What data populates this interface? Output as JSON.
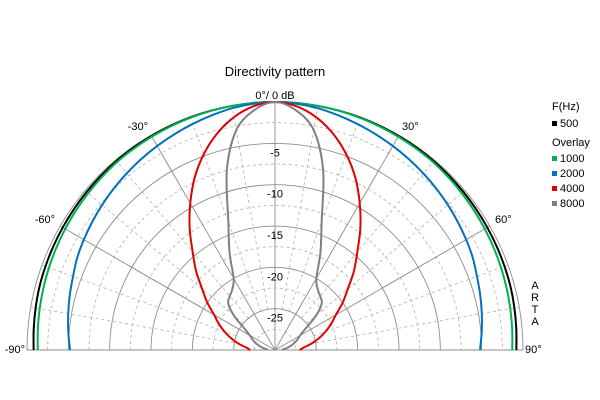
{
  "chart_data": {
    "type": "polar",
    "title": "Directivity pattern",
    "watermark": "ARTA",
    "angle_range_deg": [
      -90,
      90
    ],
    "radial_unit": "dB",
    "radial_range_db": [
      -30,
      0
    ],
    "radial_ticks": [
      {
        "value": 0,
        "label": "0°/ 0 dB"
      },
      {
        "value": -5,
        "label": "-5"
      },
      {
        "value": -10,
        "label": "-10"
      },
      {
        "value": -15,
        "label": "-15"
      },
      {
        "value": -20,
        "label": "-20"
      },
      {
        "value": -25,
        "label": "-25"
      }
    ],
    "angle_ticks": [
      {
        "value": -90,
        "label": "-90°"
      },
      {
        "value": -60,
        "label": "-60°"
      },
      {
        "value": -30,
        "label": "-30°"
      },
      {
        "value": 30,
        "label": "30°"
      },
      {
        "value": 60,
        "label": "60°"
      },
      {
        "value": 90,
        "label": "90°"
      }
    ],
    "grid": true,
    "legend": {
      "placement": "right",
      "freq_header": "F(Hz)",
      "overlay_header": "Overlay"
    },
    "angles_deg": [
      -90,
      -85,
      -80,
      -75,
      -70,
      -65,
      -60,
      -55,
      -50,
      -45,
      -40,
      -35,
      -30,
      -25,
      -20,
      -15,
      -10,
      -5,
      0,
      5,
      10,
      15,
      20,
      25,
      30,
      35,
      40,
      45,
      50,
      55,
      60,
      65,
      70,
      75,
      80,
      85,
      90
    ],
    "series": [
      {
        "name": "500",
        "color": "#000000",
        "group": "main",
        "values": [
          -0.8,
          -0.7,
          -0.6,
          -0.5,
          -0.45,
          -0.4,
          -0.35,
          -0.3,
          -0.25,
          -0.2,
          -0.15,
          -0.12,
          -0.1,
          -0.08,
          -0.05,
          -0.03,
          -0.02,
          0,
          0,
          0,
          -0.02,
          -0.03,
          -0.05,
          -0.08,
          -0.1,
          -0.12,
          -0.15,
          -0.2,
          -0.25,
          -0.3,
          -0.35,
          -0.4,
          -0.45,
          -0.5,
          -0.6,
          -0.7,
          -0.8
        ]
      },
      {
        "name": "1000",
        "color": "#00b050",
        "group": "overlay",
        "values": [
          -1.3,
          -1.2,
          -1.1,
          -1.0,
          -0.9,
          -0.8,
          -0.7,
          -0.6,
          -0.5,
          -0.4,
          -0.3,
          -0.25,
          -0.2,
          -0.15,
          -0.1,
          -0.05,
          -0.02,
          0,
          0,
          0,
          -0.02,
          -0.05,
          -0.1,
          -0.15,
          -0.2,
          -0.25,
          -0.3,
          -0.4,
          -0.5,
          -0.6,
          -0.7,
          -0.8,
          -0.9,
          -1.0,
          -1.1,
          -1.2,
          -1.3
        ]
      },
      {
        "name": "2000",
        "color": "#0070c0",
        "group": "overlay",
        "values": [
          -5.2,
          -4.9,
          -4.6,
          -4.3,
          -4.0,
          -3.6,
          -3.3,
          -3.0,
          -2.7,
          -2.4,
          -2.1,
          -1.8,
          -1.5,
          -1.2,
          -0.9,
          -0.6,
          -0.3,
          -0.1,
          0,
          -0.1,
          -0.3,
          -0.6,
          -0.9,
          -1.2,
          -1.5,
          -1.8,
          -2.1,
          -2.4,
          -2.7,
          -3.0,
          -3.3,
          -3.6,
          -4.0,
          -4.3,
          -4.6,
          -4.9,
          -5.2
        ]
      },
      {
        "name": "4000",
        "color": "#e00000",
        "group": "overlay",
        "values": [
          -27,
          -26.5,
          -25.5,
          -24.5,
          -23.5,
          -22.5,
          -21.5,
          -20,
          -18.5,
          -16.5,
          -14.5,
          -12,
          -9.5,
          -7.0,
          -4.8,
          -2.9,
          -1.4,
          -0.4,
          0,
          -0.4,
          -1.4,
          -2.9,
          -4.8,
          -7.0,
          -9.5,
          -12,
          -14.5,
          -16.5,
          -18.5,
          -20,
          -21.5,
          -22.5,
          -23.5,
          -24.5,
          -25.5,
          -26.5,
          -27
        ]
      },
      {
        "name": "8000",
        "color": "#808080",
        "group": "overlay",
        "values": [
          -29,
          -29,
          -28.5,
          -28,
          -27.5,
          -27,
          -26.5,
          -25.5,
          -23.5,
          -22,
          -21.5,
          -21,
          -20,
          -17,
          -13.5,
          -7.5,
          -3.0,
          -0.9,
          0,
          -0.9,
          -3.0,
          -7.5,
          -13.5,
          -17,
          -20,
          -21,
          -21.5,
          -22,
          -23.5,
          -25.5,
          -26.5,
          -27,
          -27.5,
          -28,
          -28.5,
          -29,
          -29
        ]
      }
    ]
  }
}
